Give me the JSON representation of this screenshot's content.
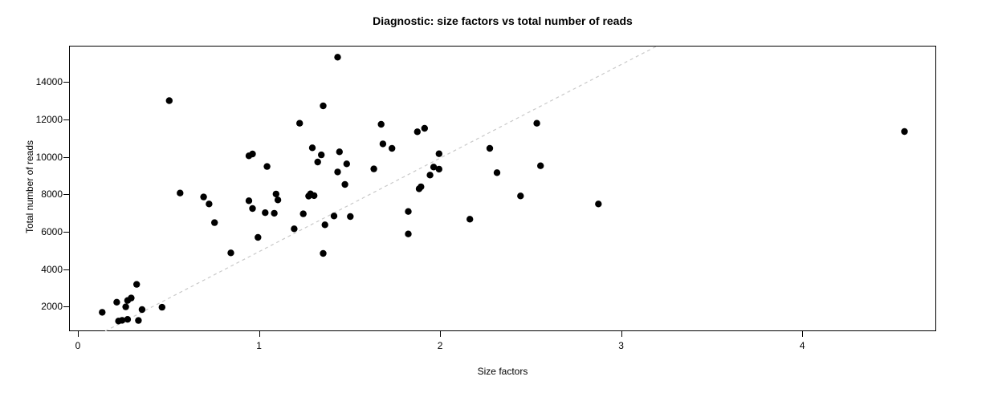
{
  "chart_data": {
    "type": "scatter",
    "title": "Diagnostic: size factors vs total number of reads",
    "xlabel": "Size factors",
    "ylabel": "Total number of reads",
    "xlim": [
      -0.05,
      4.74
    ],
    "ylim": [
      670,
      15940
    ],
    "grid": false,
    "legend": null,
    "point_color": "#000000",
    "x_axis": {
      "ticks": [
        0,
        1,
        2,
        3,
        4
      ],
      "tick_labels": [
        "0",
        "1",
        "2",
        "3",
        "4"
      ]
    },
    "y_axis": {
      "ticks": [
        2000,
        4000,
        6000,
        8000,
        10000,
        12000,
        14000
      ],
      "tick_labels": [
        "2000",
        "4000",
        "6000",
        "8000",
        "10000",
        "12000",
        "14000"
      ]
    },
    "reference_line": {
      "style": "dashed",
      "color": "#c9c9c9",
      "slope": 5000,
      "intercept": 0,
      "description": "diagonal reference line, reads = 5000 x size factor"
    },
    "points": [
      [
        0.13,
        1740
      ],
      [
        0.21,
        2280
      ],
      [
        0.26,
        2030
      ],
      [
        0.27,
        2370
      ],
      [
        0.29,
        2500
      ],
      [
        0.32,
        3230
      ],
      [
        0.35,
        1885
      ],
      [
        0.46,
        2010
      ],
      [
        0.22,
        1270
      ],
      [
        0.24,
        1310
      ],
      [
        0.27,
        1360
      ],
      [
        0.33,
        1300
      ],
      [
        0.5,
        13050
      ],
      [
        0.56,
        8110
      ],
      [
        0.69,
        7900
      ],
      [
        0.72,
        7530
      ],
      [
        0.75,
        6530
      ],
      [
        0.84,
        4915
      ],
      [
        0.94,
        10100
      ],
      [
        0.96,
        10200
      ],
      [
        1.04,
        9530
      ],
      [
        0.94,
        7700
      ],
      [
        0.96,
        7285
      ],
      [
        1.09,
        8060
      ],
      [
        1.1,
        7745
      ],
      [
        1.03,
        7060
      ],
      [
        1.08,
        7030
      ],
      [
        0.99,
        5740
      ],
      [
        1.22,
        11840
      ],
      [
        1.35,
        12770
      ],
      [
        1.43,
        15370
      ],
      [
        1.29,
        10530
      ],
      [
        1.34,
        10150
      ],
      [
        1.32,
        9770
      ],
      [
        1.44,
        10315
      ],
      [
        1.48,
        9670
      ],
      [
        1.43,
        9240
      ],
      [
        1.47,
        8570
      ],
      [
        1.28,
        8070
      ],
      [
        1.3,
        7975
      ],
      [
        1.27,
        7950
      ],
      [
        1.24,
        7000
      ],
      [
        1.19,
        6200
      ],
      [
        1.36,
        6415
      ],
      [
        1.41,
        6885
      ],
      [
        1.5,
        6855
      ],
      [
        1.35,
        4885
      ],
      [
        1.63,
        9400
      ],
      [
        1.67,
        11785
      ],
      [
        1.68,
        10740
      ],
      [
        1.73,
        10500
      ],
      [
        1.87,
        11385
      ],
      [
        1.91,
        11570
      ],
      [
        1.99,
        10210
      ],
      [
        1.96,
        9500
      ],
      [
        1.99,
        9390
      ],
      [
        1.94,
        9070
      ],
      [
        1.88,
        8340
      ],
      [
        1.89,
        8445
      ],
      [
        1.82,
        7125
      ],
      [
        1.82,
        5925
      ],
      [
        2.16,
        6715
      ],
      [
        2.27,
        10500
      ],
      [
        2.31,
        9200
      ],
      [
        2.44,
        7955
      ],
      [
        2.53,
        11840
      ],
      [
        2.55,
        9570
      ],
      [
        2.87,
        7530
      ],
      [
        4.56,
        11400
      ]
    ]
  }
}
